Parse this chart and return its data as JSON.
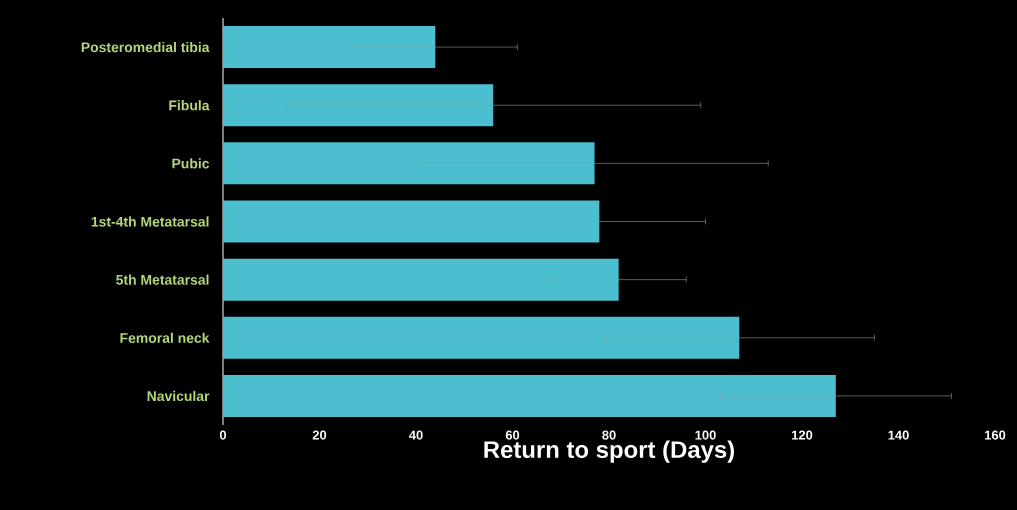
{
  "chart_data": {
    "type": "bar",
    "orientation": "horizontal",
    "xlabel": "Return to sport (Days)",
    "categories": [
      "Posteromedial tibia",
      "Fibula",
      "Pubic",
      "1st-4th Metatarsal",
      "5th Metatarsal",
      "Femoral neck",
      "Navicular"
    ],
    "values": [
      44,
      56,
      77,
      78,
      82,
      107,
      127
    ],
    "errors": [
      [
        27,
        61
      ],
      [
        13,
        99
      ],
      [
        41,
        113
      ],
      [
        56,
        100
      ],
      [
        68,
        96
      ],
      [
        79,
        135
      ],
      [
        103,
        151
      ]
    ],
    "color": "#4bbfcf",
    "xlim": [
      0,
      160
    ],
    "xticks": [
      0,
      20,
      40,
      60,
      80,
      100,
      120,
      140,
      160
    ]
  }
}
